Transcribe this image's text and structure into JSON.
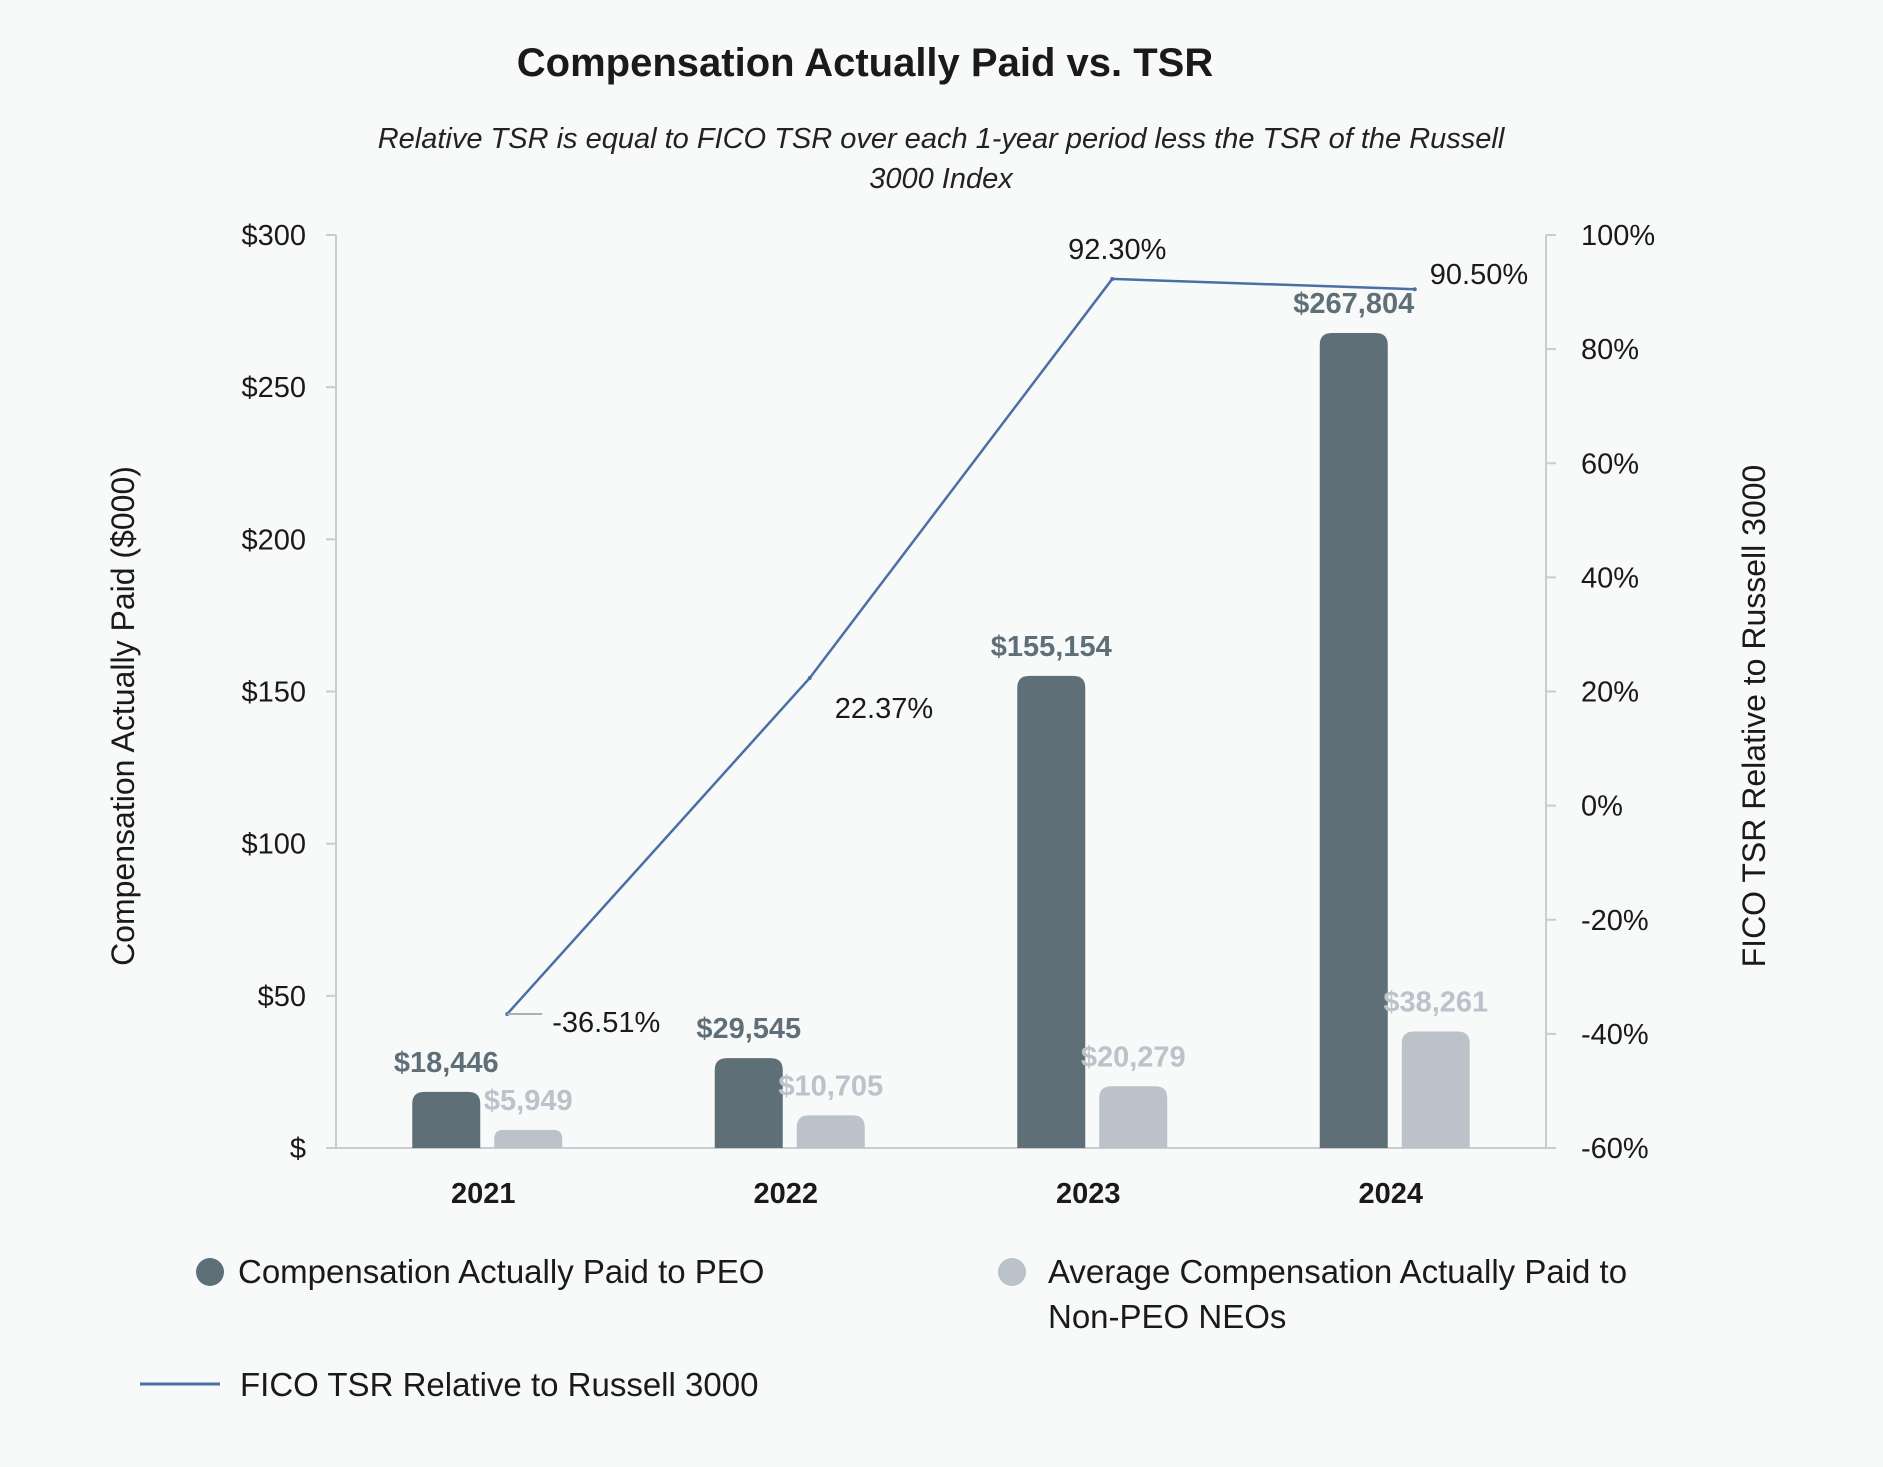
{
  "chart_data": {
    "type": "bar",
    "title": "Compensation Actually Paid vs. TSR",
    "subtitle_lines": [
      "Relative TSR is equal to FICO TSR over each 1-year period less the TSR of the Russell",
      "3000 Index"
    ],
    "categories": [
      "2021",
      "2022",
      "2023",
      "2024"
    ],
    "ylabel_left": "Compensation Actually Paid ($000)",
    "ylabel_right": "FICO TSR Relative to Russell 3000",
    "ylim_left": [
      0,
      300
    ],
    "ylim_right": [
      -60,
      100
    ],
    "left_ticks": [
      "$300",
      "$250",
      "$200",
      "$150",
      "$100",
      "$50",
      "$"
    ],
    "left_tick_values": [
      300,
      250,
      200,
      150,
      100,
      50,
      0
    ],
    "right_ticks": [
      "100%",
      "80%",
      "60%",
      "40%",
      "20%",
      "0%",
      "-20%",
      "-40%",
      "-60%"
    ],
    "right_tick_values": [
      100,
      80,
      60,
      40,
      20,
      0,
      -20,
      -40,
      -60
    ],
    "series": [
      {
        "name": "Compensation Actually Paid to PEO",
        "kind": "bar",
        "axis": "left",
        "color": "#5f6f78",
        "values": [
          18.446,
          29.545,
          155.154,
          267.804
        ],
        "labels": [
          "$18,446",
          "$29,545",
          "$155,154",
          "$267,804"
        ]
      },
      {
        "name": "Average Compensation Actually Paid to Non-PEO NEOs",
        "legend_lines": [
          "Average Compensation Actually Paid to",
          "Non-PEO NEOs"
        ],
        "kind": "bar",
        "axis": "left",
        "color": "#bbc2c9",
        "values": [
          5.949,
          10.705,
          20.279,
          38.261
        ],
        "labels": [
          "$5,949",
          "$10,705",
          "$20,279",
          "$38,261"
        ]
      },
      {
        "name": "FICO TSR Relative to Russell 3000",
        "kind": "line",
        "axis": "right",
        "color": "#4a6fa5",
        "values": [
          -36.51,
          22.37,
          92.3,
          90.5
        ],
        "labels": [
          "-36.51%",
          "22.37%",
          "92.30%",
          "90.50%"
        ]
      }
    ]
  }
}
